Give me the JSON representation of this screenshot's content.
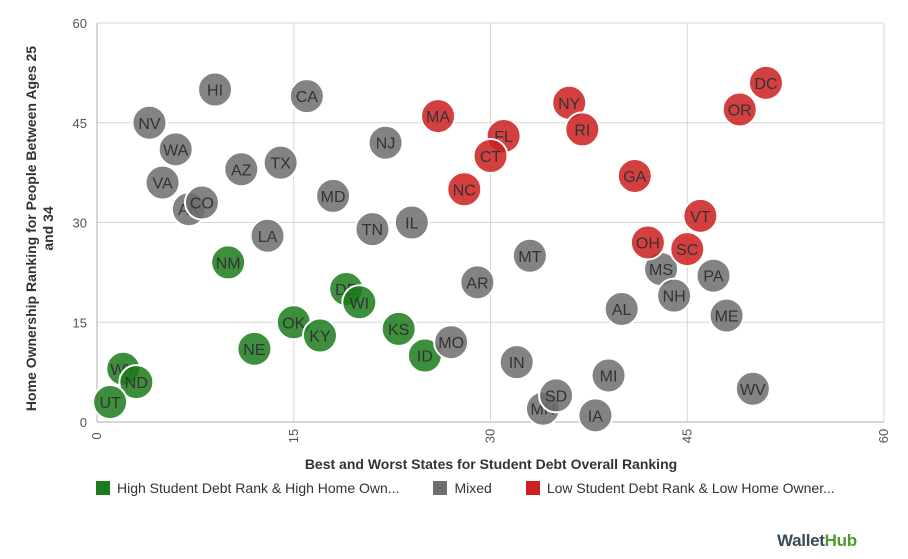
{
  "chart_data": {
    "type": "scatter",
    "xlabel": "Best and Worst States for Student Debt Overall Ranking",
    "ylabel": [
      "Home Ownership Ranking for People Between Ages 25",
      "and 34"
    ],
    "xlim": [
      0,
      60
    ],
    "ylim": [
      0,
      60
    ],
    "xticks": [
      "0",
      "15",
      "30",
      "45",
      "60"
    ],
    "yticks": [
      "0",
      "15",
      "30",
      "45",
      "60"
    ],
    "grid": true,
    "legend_position": "bottom",
    "series": [
      {
        "name": "High Student Debt Rank & High Home Own...",
        "color": "#1b7a1b",
        "points": [
          {
            "label": "WY",
            "x": 2,
            "y": 8
          },
          {
            "label": "ND",
            "x": 3,
            "y": 6
          },
          {
            "label": "UT",
            "x": 1,
            "y": 3
          },
          {
            "label": "NM",
            "x": 10,
            "y": 24
          },
          {
            "label": "NE",
            "x": 12,
            "y": 11
          },
          {
            "label": "OK",
            "x": 15,
            "y": 15
          },
          {
            "label": "KY",
            "x": 17,
            "y": 13
          },
          {
            "label": "DE",
            "x": 19,
            "y": 20
          },
          {
            "label": "WI",
            "x": 20,
            "y": 18
          },
          {
            "label": "KS",
            "x": 23,
            "y": 14
          },
          {
            "label": "ID",
            "x": 25,
            "y": 10
          }
        ]
      },
      {
        "name": "Mixed",
        "color": "#6d6d6d",
        "points": [
          {
            "label": "HI",
            "x": 9,
            "y": 50
          },
          {
            "label": "CA",
            "x": 16,
            "y": 49
          },
          {
            "label": "NV",
            "x": 4,
            "y": 45
          },
          {
            "label": "WA",
            "x": 6,
            "y": 41
          },
          {
            "label": "NJ",
            "x": 22,
            "y": 42
          },
          {
            "label": "TX",
            "x": 14,
            "y": 39
          },
          {
            "label": "AZ",
            "x": 11,
            "y": 38
          },
          {
            "label": "VA",
            "x": 5,
            "y": 36
          },
          {
            "label": "AK",
            "x": 7,
            "y": 32
          },
          {
            "label": "CO",
            "x": 8,
            "y": 33
          },
          {
            "label": "MD",
            "x": 18,
            "y": 34
          },
          {
            "label": "TN",
            "x": 21,
            "y": 29
          },
          {
            "label": "IL",
            "x": 24,
            "y": 30
          },
          {
            "label": "LA",
            "x": 13,
            "y": 28
          },
          {
            "label": "MT",
            "x": 33,
            "y": 25
          },
          {
            "label": "AR",
            "x": 29,
            "y": 21
          },
          {
            "label": "MO",
            "x": 27,
            "y": 12
          },
          {
            "label": "IN",
            "x": 32,
            "y": 9
          },
          {
            "label": "MN",
            "x": 34,
            "y": 2
          },
          {
            "label": "SD",
            "x": 35,
            "y": 4
          },
          {
            "label": "MI",
            "x": 39,
            "y": 7
          },
          {
            "label": "IA",
            "x": 38,
            "y": 1
          },
          {
            "label": "AL",
            "x": 40,
            "y": 17
          },
          {
            "label": "MS",
            "x": 43,
            "y": 23
          },
          {
            "label": "NH",
            "x": 44,
            "y": 19
          },
          {
            "label": "PA",
            "x": 47,
            "y": 22
          },
          {
            "label": "ME",
            "x": 48,
            "y": 16
          },
          {
            "label": "WV",
            "x": 50,
            "y": 5
          }
        ]
      },
      {
        "name": "Low Student Debt Rank & Low Home Owner...",
        "color": "#cc1f1f",
        "points": [
          {
            "label": "MA",
            "x": 26,
            "y": 46
          },
          {
            "label": "NY",
            "x": 36,
            "y": 48
          },
          {
            "label": "RI",
            "x": 37,
            "y": 44
          },
          {
            "label": "FL",
            "x": 31,
            "y": 43
          },
          {
            "label": "CT",
            "x": 30,
            "y": 40
          },
          {
            "label": "NC",
            "x": 28,
            "y": 35
          },
          {
            "label": "GA",
            "x": 41,
            "y": 37
          },
          {
            "label": "DC",
            "x": 51,
            "y": 51
          },
          {
            "label": "OR",
            "x": 49,
            "y": 47
          },
          {
            "label": "VT",
            "x": 46,
            "y": 31
          },
          {
            "label": "OH",
            "x": 42,
            "y": 27
          },
          {
            "label": "SC",
            "x": 45,
            "y": 26
          }
        ]
      }
    ]
  },
  "branding": {
    "part1": "Wallet",
    "part2": "Hub"
  }
}
